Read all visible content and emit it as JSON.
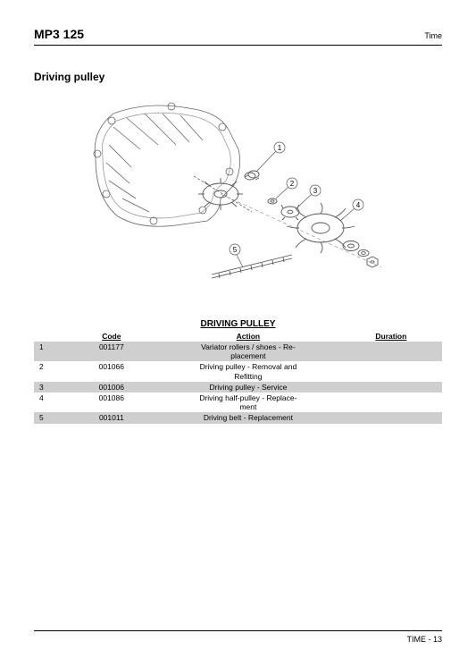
{
  "header": {
    "model": "MP3 125",
    "section": "Time"
  },
  "section_title": "Driving pulley",
  "table_title": "DRIVING PULLEY",
  "columns": {
    "idx": "",
    "code": "Code",
    "action": "Action",
    "duration": "Duration"
  },
  "rows": [
    {
      "idx": "1",
      "code": "001177",
      "action": "Variator rollers / shoes - Re-\nplacement",
      "duration": "",
      "shaded": true
    },
    {
      "idx": "2",
      "code": "001066",
      "action": "Driving pulley - Removal and\nRefitting",
      "duration": "",
      "shaded": false
    },
    {
      "idx": "3",
      "code": "001006",
      "action": "Driving pulley - Service",
      "duration": "",
      "shaded": true
    },
    {
      "idx": "4",
      "code": "001086",
      "action": "Driving half-pulley - Replace-\nment",
      "duration": "",
      "shaded": false
    },
    {
      "idx": "5",
      "code": "001011",
      "action": "Driving belt - Replacement",
      "duration": "",
      "shaded": true
    }
  ],
  "footer": "TIME - 13",
  "diagram": {
    "callouts": [
      "1",
      "2",
      "3",
      "4",
      "5"
    ],
    "stroke": "#555555",
    "stroke_light": "#999999"
  }
}
